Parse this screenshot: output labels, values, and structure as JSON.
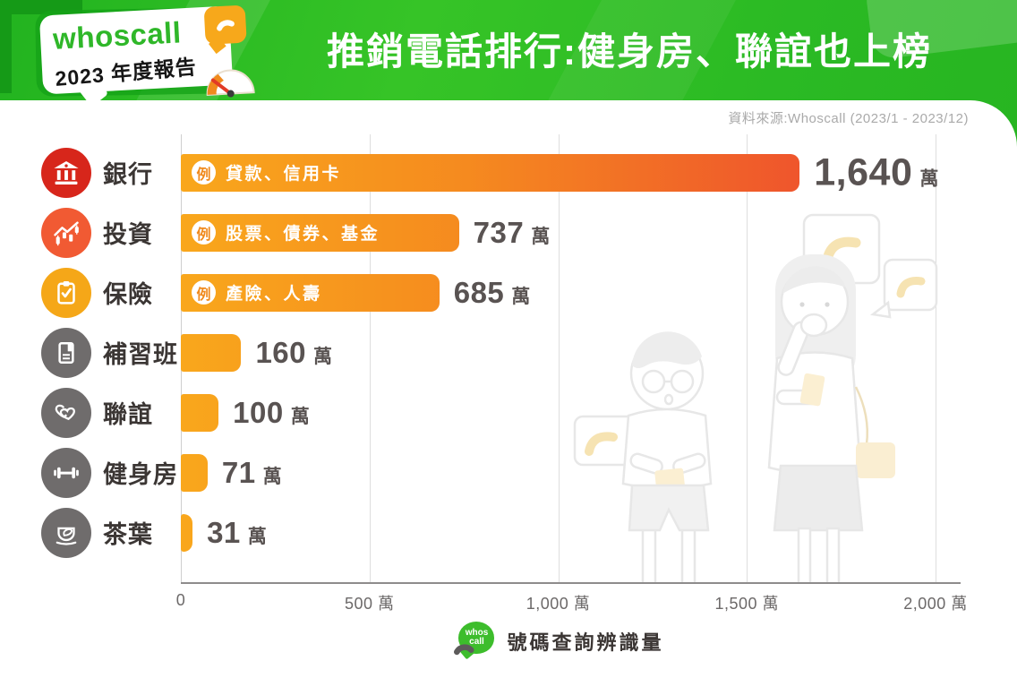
{
  "header": {
    "badge": {
      "brand": "whoscall",
      "subtitle": "2023 年度報告"
    },
    "title": "推銷電話排行:健身房、聯誼也上榜"
  },
  "source_note": "資料來源:Whoscall (2023/1 - 2023/12)",
  "chart_data": {
    "type": "bar",
    "orientation": "horizontal",
    "title": "推銷電話排行:健身房、聯誼也上榜",
    "xlabel": "號碼查詢辨識量",
    "xlim": [
      0,
      2000
    ],
    "x_ticks": [
      "0",
      "500 萬",
      "1,000 萬",
      "1,500 萬",
      "2,000 萬"
    ],
    "unit": "萬",
    "example_prefix": "例",
    "grid": "vertical",
    "legend": "none",
    "bar_gradient": [
      "#F9A71C",
      "#EA3F30"
    ],
    "categories": [
      "銀行",
      "投資",
      "保險",
      "補習班",
      "聯誼",
      "健身房",
      "茶葉"
    ],
    "values": [
      1640,
      737,
      685,
      160,
      100,
      71,
      31
    ],
    "rows": [
      {
        "label": "銀行",
        "icon": "bank-icon",
        "icon_color": "#d7261b",
        "value": 1640,
        "value_display": "1,640",
        "example": "貸款、信用卡"
      },
      {
        "label": "投資",
        "icon": "investment-icon",
        "icon_color": "#f15a33",
        "value": 737,
        "value_display": "737",
        "example": "股票、債券、基金"
      },
      {
        "label": "保險",
        "icon": "insurance-icon",
        "icon_color": "#f5a718",
        "value": 685,
        "value_display": "685",
        "example": "產險、人壽"
      },
      {
        "label": "補習班",
        "icon": "cram-school-icon",
        "icon_color": "#6f6c6c",
        "value": 160,
        "value_display": "160",
        "example": ""
      },
      {
        "label": "聯誼",
        "icon": "social-icon",
        "icon_color": "#6f6c6c",
        "value": 100,
        "value_display": "100",
        "example": ""
      },
      {
        "label": "健身房",
        "icon": "gym-icon",
        "icon_color": "#6f6c6c",
        "value": 71,
        "value_display": "71",
        "example": ""
      },
      {
        "label": "茶葉",
        "icon": "tea-icon",
        "icon_color": "#6f6c6c",
        "value": 31,
        "value_display": "31",
        "example": ""
      }
    ]
  },
  "footer": {
    "logo_line1": "whos",
    "logo_line2": "call",
    "label": "號碼查詢辨識量"
  }
}
